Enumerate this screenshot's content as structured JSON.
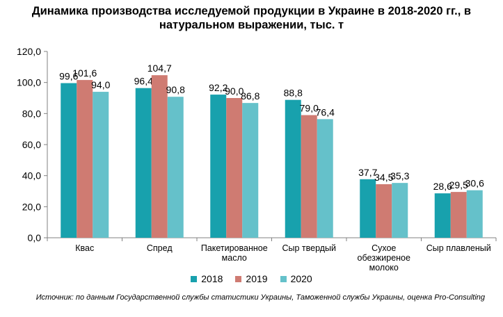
{
  "chart_data": {
    "type": "bar",
    "title_lines": [
      "Динамика производства исследуемой продукции в Украине в 2018-2020 гг., в",
      "натуральном выражении, тыс. т"
    ],
    "categories": [
      [
        "Квас"
      ],
      [
        "Спред"
      ],
      [
        "Пакетированное",
        "масло"
      ],
      [
        "Сыр твердый"
      ],
      [
        "Сухое",
        "обезжиреное",
        "молоко"
      ],
      [
        "Сыр плавленый"
      ]
    ],
    "series": [
      {
        "name": "2018",
        "color": "#18A1AD",
        "values": [
          99.6,
          96.4,
          92.2,
          88.8,
          37.7,
          28.6
        ],
        "labels": [
          "99,6",
          "96,4",
          "92,2",
          "88,8",
          "37,7",
          "28,6"
        ]
      },
      {
        "name": "2019",
        "color": "#CF7B72",
        "values": [
          101.6,
          104.7,
          90.0,
          79.0,
          34.5,
          29.5
        ],
        "labels": [
          "101,6",
          "104,7",
          "90,0",
          "79,0",
          "34,5",
          "29,5"
        ]
      },
      {
        "name": "2020",
        "color": "#65C1CA",
        "values": [
          94.0,
          90.8,
          86.8,
          76.4,
          35.3,
          30.6
        ],
        "labels": [
          "94,0",
          "90,8",
          "86,8",
          "76,4",
          "35,3",
          "30,6"
        ]
      }
    ],
    "ylim": [
      0,
      120
    ],
    "yticks": [
      0,
      20,
      40,
      60,
      80,
      100,
      120
    ],
    "ytick_labels": [
      "0,0",
      "20,0",
      "40,0",
      "60,0",
      "80,0",
      "100,0",
      "120,0"
    ],
    "legend_position": "bottom",
    "grid": false
  },
  "source": "Источник: по данным Государственной службы статистики Украины, Таможенной службы Украины, оценка Pro-Consulting"
}
